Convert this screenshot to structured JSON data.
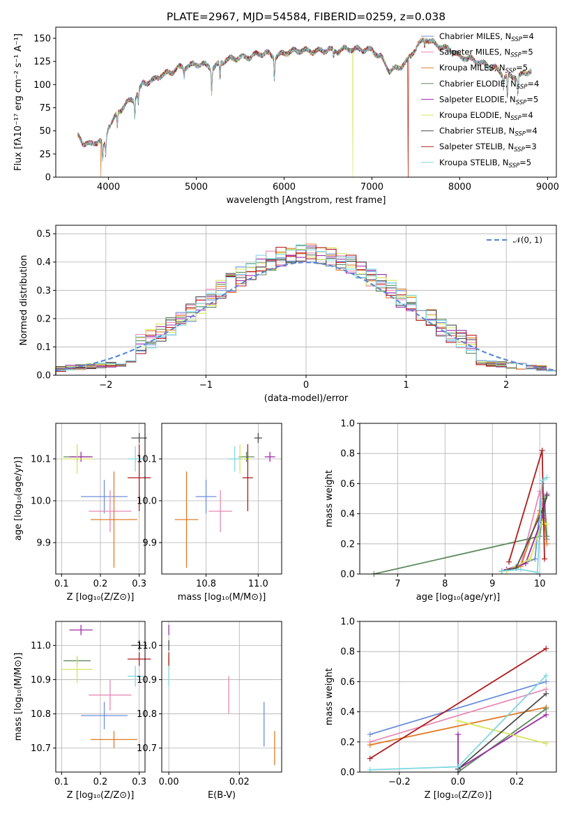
{
  "figure": {
    "title": "PLATE=2967, MJD=54584, FIBERID=0259, z=0.038"
  },
  "colors": {
    "Chabrier MILES": "#6c8edc",
    "Salpeter MILES": "#e889b5",
    "Kroupa MILES": "#e07b26",
    "Chabrier ELODIE": "#5c8a5c",
    "Salpeter ELODIE": "#9b2aa6",
    "Kroupa ELODIE": "#d7e55a",
    "Chabrier STELIB": "#4d4d4d",
    "Salpeter STELIB": "#b01a1a",
    "Kroupa STELIB": "#7fd8e0"
  },
  "legend_spectrum": [
    {
      "name": "Chabrier MILES",
      "label": "Chabrier MILES, N",
      "sub": "SSP",
      "tail": "=4"
    },
    {
      "name": "Salpeter MILES",
      "label": "Salpeter MILES, N",
      "sub": "SSP",
      "tail": "=5"
    },
    {
      "name": "Kroupa MILES",
      "label": "Kroupa MILES, N",
      "sub": "SSP",
      "tail": "=5"
    },
    {
      "name": "Chabrier ELODIE",
      "label": "Chabrier ELODIE, N",
      "sub": "SSP",
      "tail": "=4"
    },
    {
      "name": "Salpeter ELODIE",
      "label": "Salpeter ELODIE, N",
      "sub": "SSP",
      "tail": "=5"
    },
    {
      "name": "Kroupa ELODIE",
      "label": "Kroupa ELODIE, N",
      "sub": "SSP",
      "tail": "=4"
    },
    {
      "name": "Chabrier STELIB",
      "label": "Chabrier STELIB, N",
      "sub": "SSP",
      "tail": "=4"
    },
    {
      "name": "Salpeter STELIB",
      "label": "Salpeter STELIB, N",
      "sub": "SSP",
      "tail": "=3"
    },
    {
      "name": "Kroupa STELIB",
      "label": "Kroupa STELIB, N",
      "sub": "SSP",
      "tail": "=5"
    }
  ],
  "chart_data": [
    {
      "type": "line",
      "id": "spectrum",
      "xlabel": "wavelength [Angstrom, rest frame]",
      "ylabel": "Flux [fλ10⁻¹⁷ erg cm⁻² s⁻¹ A⁻¹]",
      "xlim": [
        3400,
        9100
      ],
      "ylim": [
        0,
        162
      ],
      "xticks": [
        4000,
        5000,
        6000,
        7000,
        8000,
        9000
      ],
      "yticks": [
        0,
        25,
        50,
        75,
        100,
        125,
        150
      ],
      "continuum": [
        [
          3650,
          45
        ],
        [
          3700,
          38
        ],
        [
          3800,
          35
        ],
        [
          3900,
          40
        ],
        [
          3950,
          32
        ],
        [
          4000,
          55
        ],
        [
          4100,
          68
        ],
        [
          4200,
          80
        ],
        [
          4300,
          85
        ],
        [
          4400,
          102
        ],
        [
          4500,
          104
        ],
        [
          4600,
          110
        ],
        [
          4700,
          113
        ],
        [
          4800,
          118
        ],
        [
          4900,
          120
        ],
        [
          5000,
          122
        ],
        [
          5100,
          121
        ],
        [
          5200,
          118
        ],
        [
          5300,
          125
        ],
        [
          5400,
          128
        ],
        [
          5500,
          129
        ],
        [
          5600,
          130
        ],
        [
          5700,
          133
        ],
        [
          5800,
          134
        ],
        [
          5900,
          130
        ],
        [
          6000,
          134
        ],
        [
          6100,
          136
        ],
        [
          6200,
          137
        ],
        [
          6300,
          136
        ],
        [
          6400,
          136
        ],
        [
          6500,
          138
        ],
        [
          6600,
          136
        ],
        [
          6700,
          139
        ],
        [
          6800,
          138
        ],
        [
          6900,
          138
        ],
        [
          7000,
          137
        ],
        [
          7100,
          130
        ],
        [
          7200,
          115
        ],
        [
          7300,
          118
        ],
        [
          7400,
          125
        ],
        [
          7500,
          140
        ],
        [
          7600,
          150
        ],
        [
          7700,
          145
        ],
        [
          7800,
          140
        ],
        [
          7900,
          138
        ],
        [
          8000,
          130
        ],
        [
          8100,
          128
        ],
        [
          8200,
          125
        ],
        [
          8300,
          121
        ],
        [
          8400,
          118
        ],
        [
          8500,
          110
        ],
        [
          8600,
          108
        ],
        [
          8700,
          110
        ],
        [
          8800,
          115
        ]
      ],
      "absorption_lines": [
        [
          3934,
          20
        ],
        [
          3969,
          18
        ],
        [
          4101,
          15
        ],
        [
          4300,
          20
        ],
        [
          4340,
          12
        ],
        [
          4861,
          10
        ],
        [
          5175,
          30
        ],
        [
          5270,
          15
        ],
        [
          5890,
          25
        ],
        [
          6563,
          8
        ],
        [
          7600,
          8
        ],
        [
          8498,
          15
        ],
        [
          8542,
          25
        ],
        [
          8662,
          20
        ]
      ],
      "dropouts": [
        {
          "series": "Kroupa MILES",
          "x": 3915
        },
        {
          "series": "Kroupa ELODIE",
          "x": 6780
        },
        {
          "series": "Kroupa MILES",
          "x": 7410
        },
        {
          "series": "Salpeter STELIB",
          "x": 7410
        }
      ]
    },
    {
      "type": "line",
      "id": "residuals",
      "xlabel": "(data-model)/error",
      "ylabel": "Normed distribution",
      "xlim": [
        -2.5,
        2.5
      ],
      "ylim": [
        0,
        0.53
      ],
      "xticks": [
        -2,
        -1,
        0,
        1,
        2
      ],
      "yticks": [
        0.0,
        0.1,
        0.2,
        0.3,
        0.4,
        0.5
      ],
      "legend": "𝒩(0, 1)",
      "bin_width": 0.1,
      "bins_from": -2.5,
      "series_order": [
        "Chabrier MILES",
        "Salpeter MILES",
        "Kroupa MILES",
        "Chabrier ELODIE",
        "Salpeter ELODIE",
        "Kroupa ELODIE",
        "Chabrier STELIB",
        "Salpeter STELIB",
        "Kroupa STELIB"
      ]
    },
    {
      "type": "scatter",
      "id": "age_vs_Z",
      "xlabel": "Z [log₁₀(Z/Z⊙)]",
      "ylabel": "age  [log₁₀(age/yr)]",
      "xlim": [
        0.085,
        0.315
      ],
      "ylim": [
        9.825,
        10.185
      ],
      "xticks": [
        0.1,
        0.2,
        0.3
      ],
      "yticks": [
        9.9,
        10.0,
        10.1
      ],
      "points": [
        {
          "series": "Chabrier MILES",
          "x": 0.21,
          "y": 10.01,
          "xerr": 0.06,
          "yerr": 0.04
        },
        {
          "series": "Salpeter MILES",
          "x": 0.225,
          "y": 9.975,
          "xerr": 0.055,
          "yerr": 0.05
        },
        {
          "series": "Kroupa MILES",
          "x": 0.235,
          "y": 9.955,
          "xerr": 0.06,
          "yerr": 0.115
        },
        {
          "series": "Chabrier ELODIE",
          "x": 0.14,
          "y": 10.105,
          "xerr": 0.035,
          "yerr": 0.012
        },
        {
          "series": "Salpeter ELODIE",
          "x": 0.15,
          "y": 10.105,
          "xerr": 0.03,
          "yerr": 0.012
        },
        {
          "series": "Kroupa ELODIE",
          "x": 0.14,
          "y": 10.1,
          "xerr": 0.04,
          "yerr": 0.035
        },
        {
          "series": "Chabrier STELIB",
          "x": 0.3,
          "y": 10.15,
          "xerr": 0.02,
          "yerr": 0.012
        },
        {
          "series": "Salpeter STELIB",
          "x": 0.3,
          "y": 10.055,
          "xerr": 0.03,
          "yerr": 0.08
        },
        {
          "series": "Kroupa STELIB",
          "x": 0.29,
          "y": 10.1,
          "xerr": 0.02,
          "yerr": 0.03
        }
      ]
    },
    {
      "type": "scatter",
      "id": "age_vs_mass",
      "xlabel": "mass [log₁₀(M/M⊙)]",
      "ylabel": "",
      "xlim": [
        10.63,
        11.09
      ],
      "ylim": [
        9.825,
        10.185
      ],
      "xticks": [
        10.8,
        11.0
      ],
      "yticks": [
        9.9,
        10.0,
        10.1
      ],
      "points": [
        {
          "series": "Chabrier MILES",
          "x": 10.8,
          "y": 10.01,
          "xerr": 0.04,
          "yerr": 0.04
        },
        {
          "series": "Salpeter MILES",
          "x": 10.855,
          "y": 9.975,
          "xerr": 0.045,
          "yerr": 0.05
        },
        {
          "series": "Kroupa MILES",
          "x": 10.725,
          "y": 9.955,
          "xerr": 0.045,
          "yerr": 0.115
        },
        {
          "series": "Chabrier ELODIE",
          "x": 10.955,
          "y": 10.105,
          "xerr": 0.03,
          "yerr": 0.012
        },
        {
          "series": "Salpeter ELODIE",
          "x": 11.045,
          "y": 10.105,
          "xerr": 0.02,
          "yerr": 0.012
        },
        {
          "series": "Kroupa ELODIE",
          "x": 10.93,
          "y": 10.1,
          "xerr": 0.04,
          "yerr": 0.035
        },
        {
          "series": "Chabrier STELIB",
          "x": 11.0,
          "y": 10.15,
          "xerr": 0.015,
          "yerr": 0.012
        },
        {
          "series": "Salpeter STELIB",
          "x": 10.96,
          "y": 10.055,
          "xerr": 0.02,
          "yerr": 0.08
        },
        {
          "series": "Kroupa STELIB",
          "x": 10.91,
          "y": 10.1,
          "xerr": 0.025,
          "yerr": 0.03
        }
      ]
    },
    {
      "type": "line",
      "id": "mass_weight_vs_age",
      "xlabel": "age  [log₁₀(age/yr)]",
      "ylabel": "mass weight",
      "xlim": [
        6.2,
        10.35
      ],
      "ylim": [
        0,
        1
      ],
      "xticks": [
        7,
        8,
        9,
        10
      ],
      "yticks": [
        0.0,
        0.2,
        0.4,
        0.6,
        0.8,
        1.0
      ],
      "series": [
        {
          "name": "Chabrier MILES",
          "x": [
            9.2,
            9.5,
            9.9,
            10.05,
            10.15
          ],
          "y": [
            0.02,
            0.05,
            0.1,
            0.6,
            0.23
          ]
        },
        {
          "name": "Salpeter MILES",
          "x": [
            9.3,
            9.6,
            10.0,
            10.1
          ],
          "y": [
            0.03,
            0.06,
            0.55,
            0.36
          ]
        },
        {
          "name": "Kroupa MILES",
          "x": [
            9.2,
            9.6,
            10.0,
            10.1,
            10.15
          ],
          "y": [
            0.02,
            0.05,
            0.42,
            0.33,
            0.2
          ]
        },
        {
          "name": "Chabrier ELODIE",
          "x": [
            6.5,
            10.0,
            10.1,
            10.15
          ],
          "y": [
            0.0,
            0.25,
            0.5,
            0.25
          ]
        },
        {
          "name": "Salpeter ELODIE",
          "x": [
            9.3,
            9.7,
            10.05,
            10.15
          ],
          "y": [
            0.03,
            0.07,
            0.37,
            0.53
          ]
        },
        {
          "name": "Kroupa ELODIE",
          "x": [
            9.3,
            9.8,
            10.05,
            10.15
          ],
          "y": [
            0.02,
            0.1,
            0.35,
            0.33
          ]
        },
        {
          "name": "Chabrier STELIB",
          "x": [
            9.2,
            9.5,
            10.05,
            10.15
          ],
          "y": [
            0.02,
            0.04,
            0.42,
            0.52
          ]
        },
        {
          "name": "Salpeter STELIB",
          "x": [
            9.35,
            10.05,
            10.1
          ],
          "y": [
            0.08,
            0.82,
            0.1
          ]
        },
        {
          "name": "Kroupa STELIB",
          "x": [
            9.2,
            9.6,
            9.95,
            10.05,
            10.15
          ],
          "y": [
            0.02,
            0.03,
            0.01,
            0.62,
            0.64
          ]
        }
      ]
    },
    {
      "type": "scatter",
      "id": "mass_vs_Z",
      "xlabel": "Z [log₁₀(Z/Z⊙)]",
      "ylabel": "mass [log₁₀(M/M⊙)]",
      "xlim": [
        0.085,
        0.315
      ],
      "ylim": [
        10.63,
        11.07
      ],
      "xticks": [
        0.1,
        0.2,
        0.3
      ],
      "yticks": [
        10.7,
        10.8,
        10.9,
        11.0
      ],
      "points": [
        {
          "series": "Chabrier MILES",
          "x": 0.21,
          "y": 10.795,
          "xerr": 0.06,
          "yerr": 0.04
        },
        {
          "series": "Salpeter MILES",
          "x": 0.225,
          "y": 10.855,
          "xerr": 0.055,
          "yerr": 0.045
        },
        {
          "series": "Kroupa MILES",
          "x": 0.235,
          "y": 10.725,
          "xerr": 0.06,
          "yerr": 0.025
        },
        {
          "series": "Chabrier ELODIE",
          "x": 0.14,
          "y": 10.955,
          "xerr": 0.035,
          "yerr": 0.01
        },
        {
          "series": "Salpeter ELODIE",
          "x": 0.15,
          "y": 11.045,
          "xerr": 0.03,
          "yerr": 0.015
        },
        {
          "series": "Kroupa ELODIE",
          "x": 0.14,
          "y": 10.93,
          "xerr": 0.04,
          "yerr": 0.04
        },
        {
          "series": "Chabrier STELIB",
          "x": 0.3,
          "y": 11.0,
          "xerr": 0.02,
          "yerr": 0.015
        },
        {
          "series": "Salpeter STELIB",
          "x": 0.3,
          "y": 10.96,
          "xerr": 0.03,
          "yerr": 0.02
        },
        {
          "series": "Kroupa STELIB",
          "x": 0.29,
          "y": 10.91,
          "xerr": 0.02,
          "yerr": 0.03
        }
      ]
    },
    {
      "type": "scatter",
      "id": "mass_vs_EBV",
      "xlabel": "E(B-V)",
      "ylabel": "",
      "xlim": [
        -0.002,
        0.032
      ],
      "ylim": [
        10.63,
        11.07
      ],
      "xticks": [
        0.0,
        0.02
      ],
      "yticks": [
        10.7,
        10.8,
        10.9,
        11.0
      ],
      "points": [
        {
          "series": "Chabrier MILES",
          "x": 0.027,
          "y": 10.77,
          "xerr": 0.0,
          "yerr": 0.065
        },
        {
          "series": "Salpeter MILES",
          "x": 0.017,
          "y": 10.855,
          "xerr": 0.0,
          "yerr": 0.055
        },
        {
          "series": "Kroupa MILES",
          "x": 0.03,
          "y": 10.7,
          "xerr": 0.0,
          "yerr": 0.05
        },
        {
          "series": "Chabrier ELODIE",
          "x": 0.0,
          "y": 10.955,
          "xerr": 0.0,
          "yerr": 0.01
        },
        {
          "series": "Salpeter ELODIE",
          "x": 0.0,
          "y": 11.045,
          "xerr": 0.0,
          "yerr": 0.015
        },
        {
          "series": "Kroupa ELODIE",
          "x": 0.0,
          "y": 10.93,
          "xerr": 0.0,
          "yerr": 0.04
        },
        {
          "series": "Chabrier STELIB",
          "x": 0.0,
          "y": 11.0,
          "xerr": 0.0,
          "yerr": 0.015
        },
        {
          "series": "Salpeter STELIB",
          "x": 0.0,
          "y": 10.96,
          "xerr": 0.0,
          "yerr": 0.02
        },
        {
          "series": "Kroupa STELIB",
          "x": 0.0,
          "y": 10.91,
          "xerr": 0.0,
          "yerr": 0.03
        }
      ]
    },
    {
      "type": "line",
      "id": "mass_weight_vs_Z",
      "xlabel": "Z [log₁₀(Z/Z⊙)]",
      "ylabel": "mass weight",
      "xlim": [
        -0.335,
        0.335
      ],
      "ylim": [
        0,
        1
      ],
      "xticks": [
        -0.2,
        0.0,
        0.2
      ],
      "yticks": [
        0.0,
        0.2,
        0.4,
        0.6,
        0.8,
        1.0
      ],
      "series": [
        {
          "name": "Chabrier MILES",
          "x": [
            -0.3,
            0.3
          ],
          "y": [
            0.25,
            0.6
          ]
        },
        {
          "name": "Salpeter MILES",
          "x": [
            -0.3,
            0.3
          ],
          "y": [
            0.2,
            0.55
          ]
        },
        {
          "name": "Kroupa MILES",
          "x": [
            -0.3,
            0.3
          ],
          "y": [
            0.18,
            0.43
          ]
        },
        {
          "name": "Chabrier ELODIE",
          "x": [
            0.0,
            0.3
          ],
          "y": [
            0.0,
            0.42
          ]
        },
        {
          "name": "Salpeter ELODIE",
          "x": [
            0.0,
            0.0,
            0.3
          ],
          "y": [
            0.25,
            0.02,
            0.38
          ]
        },
        {
          "name": "Kroupa ELODIE",
          "x": [
            0.0,
            0.3
          ],
          "y": [
            0.34,
            0.19
          ]
        },
        {
          "name": "Chabrier STELIB",
          "x": [
            0.0,
            0.3
          ],
          "y": [
            0.02,
            0.52
          ]
        },
        {
          "name": "Salpeter STELIB",
          "x": [
            -0.3,
            0.3
          ],
          "y": [
            0.09,
            0.82
          ]
        },
        {
          "name": "Kroupa STELIB",
          "x": [
            -0.3,
            0.0,
            0.3
          ],
          "y": [
            0.015,
            0.035,
            0.64
          ]
        }
      ]
    }
  ]
}
